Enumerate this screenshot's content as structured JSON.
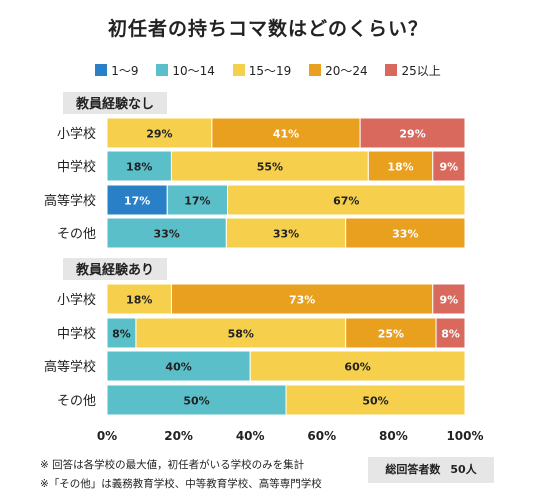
{
  "chart_data": {
    "type": "bar",
    "title": "初任者の持ちコマ数はどのくらい？",
    "legend": [
      {
        "label": "1〜9",
        "color": "#2a80c6"
      },
      {
        "label": "10〜14",
        "color": "#5bbfc9"
      },
      {
        "label": "15〜19",
        "color": "#f6d04d"
      },
      {
        "label": "20〜24",
        "color": "#e8a01e"
      },
      {
        "label": "25以上",
        "color": "#d9685d"
      }
    ],
    "legend_position": "top",
    "x_ticks": [
      "0%",
      "20%",
      "40%",
      "60%",
      "80%",
      "100%"
    ],
    "xlim": [
      0,
      100
    ],
    "grid": false,
    "groups": [
      {
        "label": "教員経験なし",
        "rows": [
          {
            "label": "小学校",
            "values": [
              0,
              0,
              29,
              41,
              29
            ]
          },
          {
            "label": "中学校",
            "values": [
              0,
              18,
              55,
              18,
              9
            ]
          },
          {
            "label": "高等学校",
            "values": [
              17,
              17,
              67,
              0,
              0
            ]
          },
          {
            "label": "その他",
            "values": [
              0,
              33,
              33,
              33,
              0
            ]
          }
        ]
      },
      {
        "label": "教員経験あり",
        "rows": [
          {
            "label": "小学校",
            "values": [
              0,
              0,
              18,
              73,
              9
            ]
          },
          {
            "label": "中学校",
            "values": [
              0,
              8,
              58,
              25,
              8
            ]
          },
          {
            "label": "高等学校",
            "values": [
              0,
              40,
              60,
              0,
              0
            ]
          },
          {
            "label": "その他",
            "values": [
              0,
              50,
              50,
              0,
              0
            ]
          }
        ]
      }
    ]
  },
  "footnotes": [
    "※ 回答は各学校の最大値，初任者がいる学校のみを集計",
    "※「その他」は義務教育学校、中等教育学校、高等専門学校"
  ],
  "total_box": {
    "label": "総回答者数",
    "value": "50人"
  }
}
